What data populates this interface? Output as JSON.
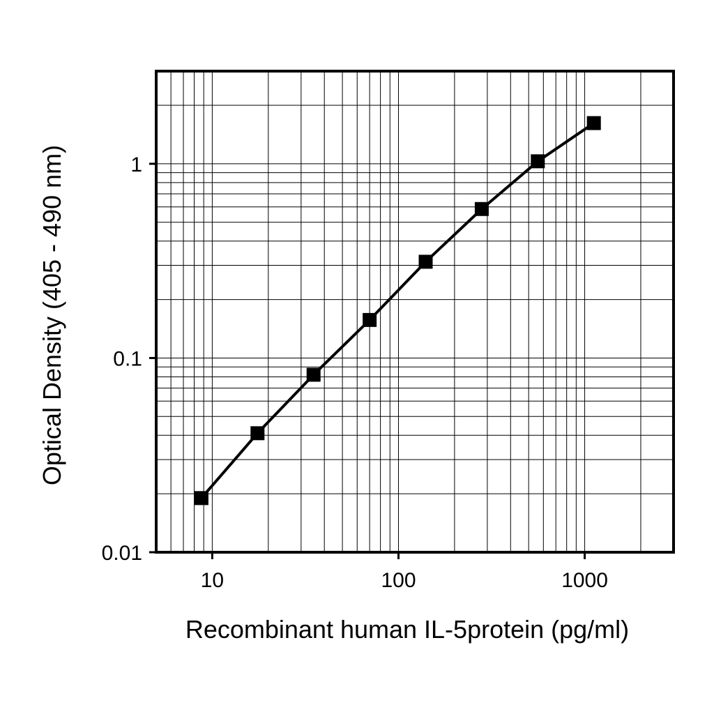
{
  "chart_data": {
    "type": "line",
    "title": "",
    "xlabel": "Recombinant human IL-5protein (pg/ml)",
    "ylabel": "Optical Density (405 - 490 nm)",
    "xscale": "log",
    "yscale": "log",
    "xlim": [
      5,
      3000
    ],
    "ylim": [
      0.01,
      3
    ],
    "x_ticks": [
      {
        "value": 10,
        "label": "10"
      },
      {
        "value": 100,
        "label": "100"
      },
      {
        "value": 1000,
        "label": "1000"
      }
    ],
    "y_ticks": [
      {
        "value": 0.01,
        "label": "0.01"
      },
      {
        "value": 0.1,
        "label": "0.1"
      },
      {
        "value": 1,
        "label": "1"
      }
    ],
    "grid": true,
    "legend": "none",
    "marker": "square",
    "color": "#000000",
    "series": [
      {
        "x": [
          8.75,
          17.5,
          35,
          70,
          140,
          280,
          560,
          1120
        ],
        "y": [
          0.019,
          0.041,
          0.082,
          0.157,
          0.313,
          0.585,
          1.03,
          1.62
        ]
      }
    ]
  }
}
